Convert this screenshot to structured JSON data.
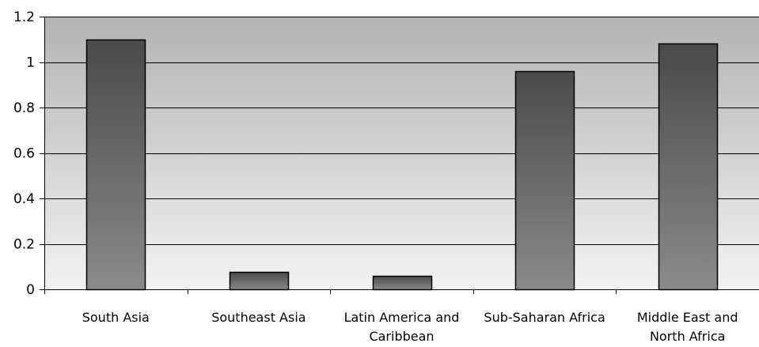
{
  "chart_data": {
    "type": "bar",
    "title": "",
    "xlabel": "",
    "ylabel": "",
    "categories": [
      [
        "South Asia"
      ],
      [
        "Southeast Asia"
      ],
      [
        "Latin America and",
        "Caribbean"
      ],
      [
        "Sub-Saharan Africa"
      ],
      [
        "Middle East and",
        "North Africa"
      ]
    ],
    "values": [
      1.1,
      0.075,
      0.06,
      0.96,
      1.08
    ],
    "ylim": [
      0,
      1.2
    ],
    "yticks": [
      "0",
      "0.2",
      "0.4",
      "0.6",
      "0.8",
      "1",
      "1.2"
    ],
    "grid": true,
    "legend": "none"
  },
  "colors": {
    "bar_top": "#4a4a4a",
    "bar_bottom": "#8a8a8a",
    "bar_stroke": "#000000",
    "plot_bg_top": "#b3b3b3",
    "plot_bg_bottom": "#f2f2f2",
    "gridline": "#000000"
  }
}
